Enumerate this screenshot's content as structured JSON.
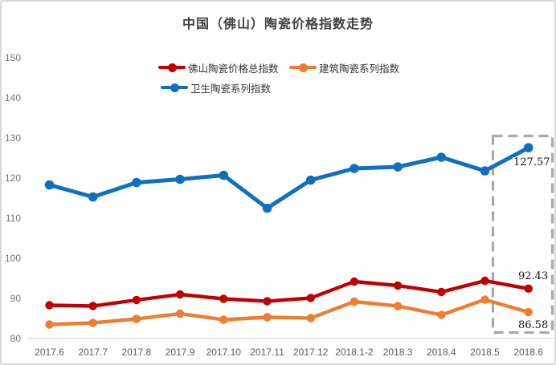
{
  "chart_data": {
    "type": "line",
    "title": "中国（佛山）陶瓷价格指数走势",
    "categories": [
      "2017.6",
      "2017.7",
      "2017.8",
      "2017.9",
      "2017.10",
      "2017.11",
      "2017.12",
      "2018.1-2",
      "2018.3",
      "2018.4",
      "2018.5",
      "2018.6"
    ],
    "series": [
      {
        "name": "佛山陶瓷价格总指数",
        "color": "#c00000",
        "values": [
          88.3,
          88.1,
          89.6,
          91.0,
          89.9,
          89.3,
          90.1,
          94.2,
          93.2,
          91.6,
          94.4,
          92.43
        ],
        "last_label": "92.43"
      },
      {
        "name": "建筑陶瓷系列指数",
        "color": "#ed7d31",
        "values": [
          83.5,
          83.9,
          84.9,
          86.2,
          84.7,
          85.3,
          85.1,
          89.2,
          88.1,
          85.9,
          89.7,
          86.58
        ],
        "last_label": "86.58"
      },
      {
        "name": "卫生陶瓷系列指数",
        "color": "#1170be",
        "values": [
          118.3,
          115.3,
          118.9,
          119.7,
          120.7,
          112.5,
          119.5,
          122.4,
          122.8,
          125.2,
          121.8,
          127.57
        ],
        "last_label": "127.57"
      }
    ],
    "xlabel": "",
    "ylabel": "",
    "ylim": [
      80,
      150
    ],
    "y_ticks": [
      80,
      90,
      100,
      110,
      120,
      130,
      140,
      150
    ],
    "grid": false,
    "legend_position": "top",
    "annotations": {
      "highlighted_category": "2018.6",
      "highlight_style": "dashed-box"
    }
  }
}
